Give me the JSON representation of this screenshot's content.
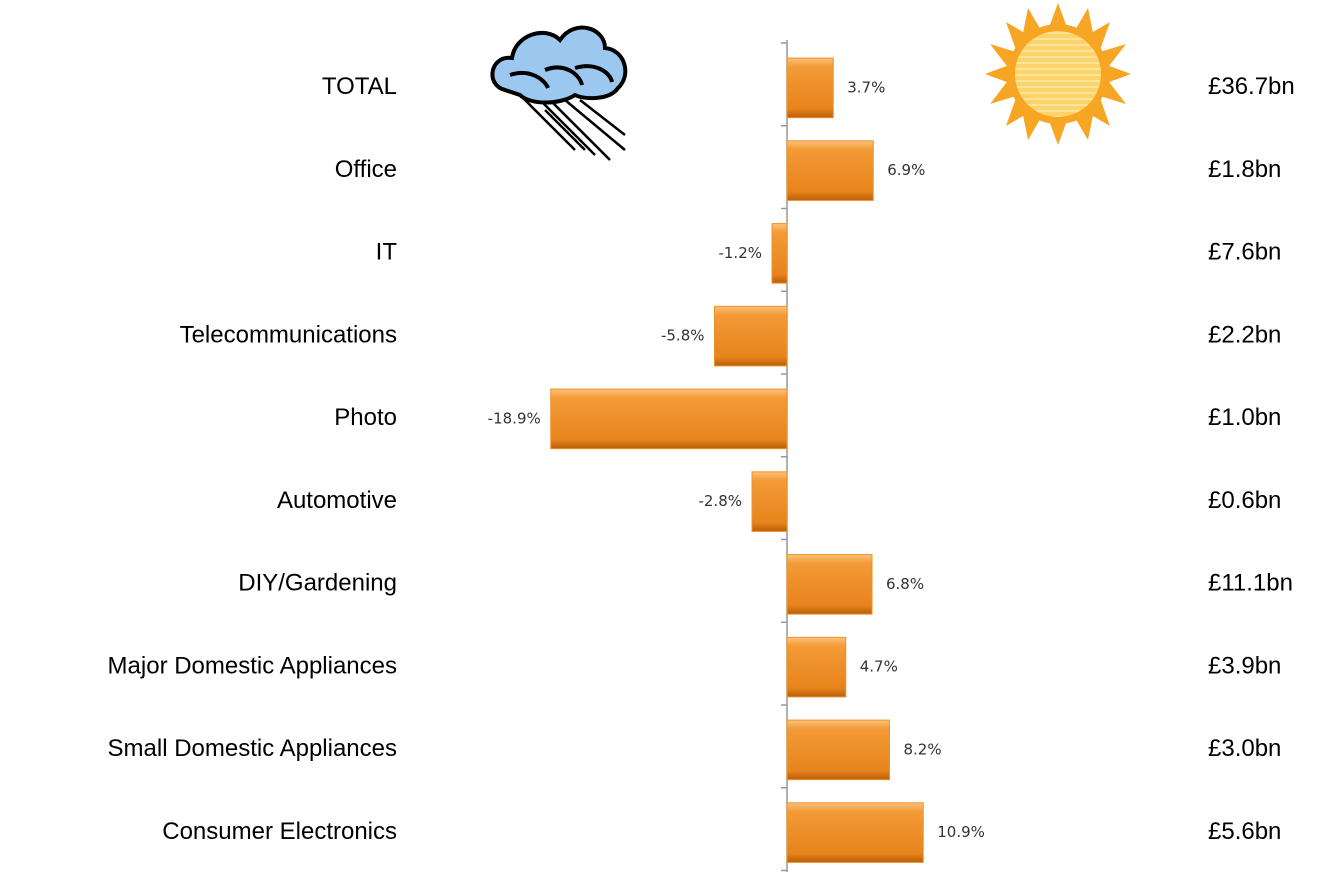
{
  "chart_data": {
    "type": "bar",
    "orientation": "horizontal",
    "categories": [
      "TOTAL",
      "Office",
      "IT",
      "Telecommunications",
      "Photo",
      "Automotive",
      "DIY/Gardening",
      "Major Domestic Appliances",
      "Small Domestic Appliances",
      "Consumer Electronics"
    ],
    "values": [
      3.7,
      6.9,
      -1.2,
      -5.8,
      -18.9,
      -2.8,
      6.8,
      4.7,
      8.2,
      10.9
    ],
    "value_labels": [
      "3.7%",
      "6.9%",
      "-1.2%",
      "-5.8%",
      "-18.9%",
      "-2.8%",
      "6.8%",
      "4.7%",
      "8.2%",
      "10.9%"
    ],
    "market_sizes": [
      "£36.7bn",
      "£1.8bn",
      "£7.6bn",
      "£2.2bn",
      "£1.0bn",
      "£0.6bn",
      "£11.1bn",
      "£3.9bn",
      "£3.0bn",
      "£5.6bn"
    ],
    "color": "#f0902a",
    "xlim": [
      -20,
      20
    ],
    "grid": false
  }
}
